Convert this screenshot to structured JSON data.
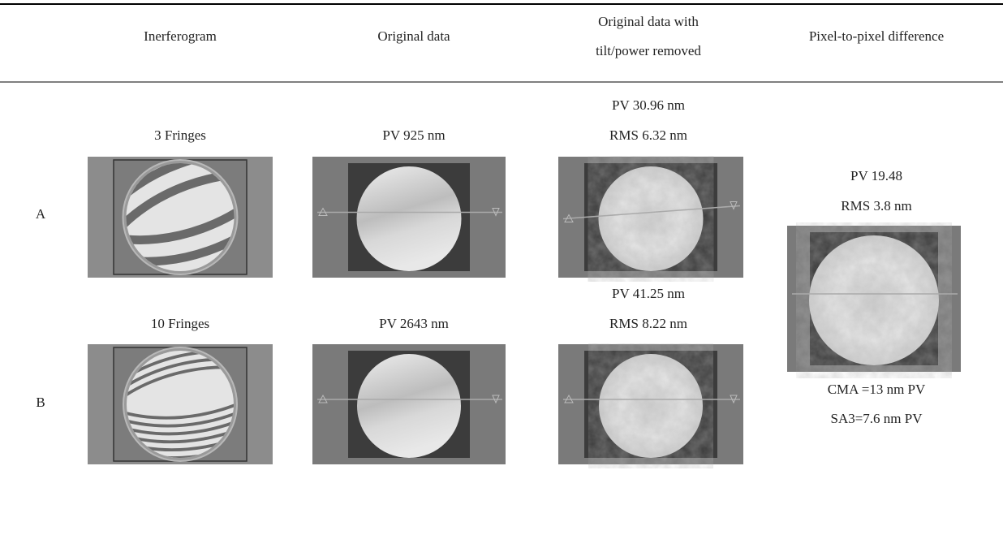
{
  "table": {
    "header": [
      "Inerferogram",
      "Original data",
      [
        "Original data with",
        "tilt/power removed"
      ],
      "Pixel-to-pixel difference"
    ],
    "rows": [
      {
        "label": "A",
        "fringes": "3 Fringes",
        "original": "PV 925 nm",
        "removed": [
          "PV 30.96 nm",
          "RMS 6.32 nm"
        ]
      },
      {
        "label": "B",
        "fringes": "10 Fringes",
        "original": "PV 2643 nm",
        "removed": [
          "PV 41.25 nm",
          "RMS 8.22 nm"
        ]
      }
    ],
    "difference": [
      "PV 19.48",
      "RMS 3.8 nm",
      "CMA =13 nm PV",
      "SA3=7.6 nm PV"
    ]
  }
}
